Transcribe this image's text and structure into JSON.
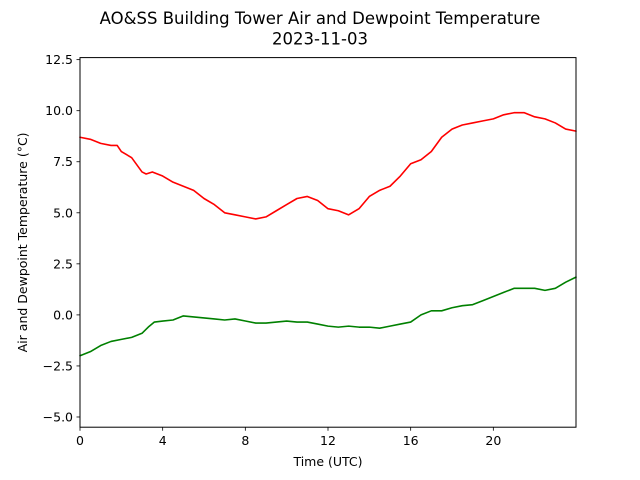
{
  "chart_data": {
    "type": "line",
    "title": "AO&SS Building Tower Air and Dewpoint Temperature",
    "subtitle": "2023-11-03",
    "xlabel": "Time (UTC)",
    "ylabel": "Air and Dewpoint Temperature (°C)",
    "xlim": [
      0,
      24
    ],
    "ylim": [
      -5.5,
      12.6
    ],
    "xticks": [
      0,
      4,
      8,
      12,
      16,
      20
    ],
    "xtick_labels": [
      "0",
      "4",
      "8",
      "12",
      "16",
      "20"
    ],
    "yticks": [
      -5.0,
      -2.5,
      0.0,
      2.5,
      5.0,
      7.5,
      10.0,
      12.5
    ],
    "ytick_labels": [
      "−5.0",
      "−2.5",
      "0.0",
      "2.5",
      "5.0",
      "7.5",
      "10.0",
      "12.5"
    ],
    "grid": false,
    "series": [
      {
        "color": "#ff0000",
        "x": [
          0,
          0.5,
          1,
          1.5,
          1.8,
          2,
          2.5,
          3,
          3.2,
          3.5,
          4,
          4.5,
          5,
          5.5,
          6,
          6.5,
          7,
          7.5,
          8,
          8.5,
          9,
          9.5,
          10,
          10.5,
          11,
          11.5,
          12,
          12.5,
          13,
          13.5,
          14,
          14.5,
          15,
          15.5,
          16,
          16.5,
          17,
          17.5,
          18,
          18.5,
          19,
          19.5,
          20,
          20.5,
          21,
          21.5,
          22,
          22.5,
          23,
          23.5,
          24
        ],
        "values": [
          8.7,
          8.6,
          8.4,
          8.3,
          8.3,
          8.0,
          7.7,
          7.0,
          6.9,
          7.0,
          6.8,
          6.5,
          6.3,
          6.1,
          5.7,
          5.4,
          5.0,
          4.9,
          4.8,
          4.7,
          4.8,
          5.1,
          5.4,
          5.7,
          5.8,
          5.6,
          5.2,
          5.1,
          4.9,
          5.2,
          5.8,
          6.1,
          6.3,
          6.8,
          7.4,
          7.6,
          8.0,
          8.7,
          9.1,
          9.3,
          9.4,
          9.5,
          9.6,
          9.8,
          9.9,
          9.9,
          9.7,
          9.6,
          9.4,
          9.1,
          9.0
        ]
      },
      {
        "color": "#008000",
        "x": [
          0,
          0.5,
          1,
          1.5,
          2,
          2.5,
          3,
          3.3,
          3.6,
          4,
          4.5,
          5,
          5.5,
          6,
          6.5,
          7,
          7.5,
          8,
          8.5,
          9,
          9.5,
          10,
          10.5,
          11,
          11.5,
          12,
          12.5,
          13,
          13.5,
          14,
          14.5,
          15,
          15.5,
          16,
          16.5,
          17,
          17.5,
          18,
          18.5,
          19,
          19.5,
          20,
          20.5,
          21,
          21.5,
          22,
          22.5,
          23,
          23.5,
          24
        ],
        "values": [
          -2.0,
          -1.8,
          -1.5,
          -1.3,
          -1.2,
          -1.1,
          -0.9,
          -0.6,
          -0.35,
          -0.3,
          -0.25,
          -0.05,
          -0.1,
          -0.15,
          -0.2,
          -0.25,
          -0.2,
          -0.3,
          -0.4,
          -0.4,
          -0.35,
          -0.3,
          -0.35,
          -0.35,
          -0.45,
          -0.55,
          -0.6,
          -0.55,
          -0.6,
          -0.6,
          -0.65,
          -0.55,
          -0.45,
          -0.35,
          0.0,
          0.2,
          0.2,
          0.35,
          0.45,
          0.5,
          0.7,
          0.9,
          1.1,
          1.3,
          1.3,
          1.3,
          1.2,
          1.3,
          1.6,
          1.85
        ]
      }
    ]
  }
}
